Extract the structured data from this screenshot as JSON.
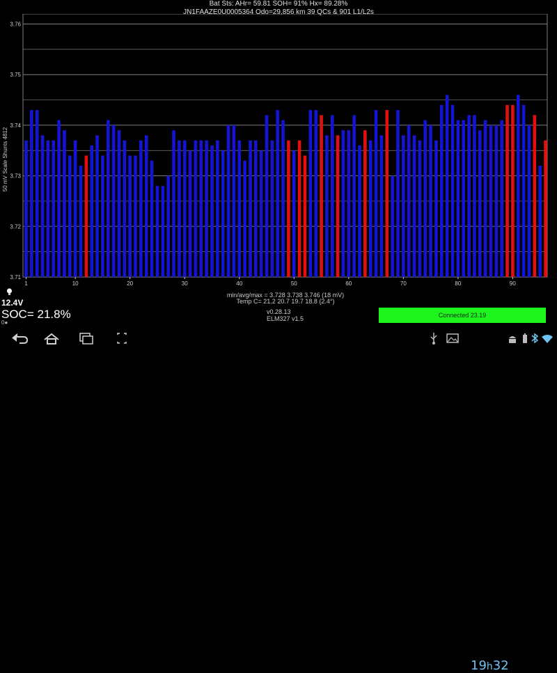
{
  "header": {
    "line1": "Bat Sts:  AHr= 59.81  SOH= 91%  Hx= 89.28%",
    "line2": "JN1FAAZE0U0005364 Odo=29,856 km  39 QCs  &  901 L1/L2s"
  },
  "chart_data": {
    "type": "bar",
    "title": "",
    "ylabel": "50 mV Scale   Shunts 4812",
    "xlabel": "",
    "ylim": [
      3.71,
      3.762
    ],
    "yticks": [
      3.71,
      3.72,
      3.73,
      3.74,
      3.75,
      3.76
    ],
    "ytick_labels": [
      "3.71",
      "3.72",
      "3.73",
      "3.74",
      "3.75",
      "3.76"
    ],
    "xticks": [
      1,
      10,
      20,
      30,
      40,
      50,
      60,
      70,
      80,
      90
    ],
    "xtick_labels": [
      "1",
      "10",
      "20",
      "30",
      "40",
      "50",
      "60",
      "70",
      "80",
      "90"
    ],
    "grid": true,
    "colors": {
      "normal": "#1414d4",
      "shunt": "#e01010",
      "grid": "#808080"
    },
    "x": [
      1,
      2,
      3,
      4,
      5,
      6,
      7,
      8,
      9,
      10,
      11,
      12,
      13,
      14,
      15,
      16,
      17,
      18,
      19,
      20,
      21,
      22,
      23,
      24,
      25,
      26,
      27,
      28,
      29,
      30,
      31,
      32,
      33,
      34,
      35,
      36,
      37,
      38,
      39,
      40,
      41,
      42,
      43,
      44,
      45,
      46,
      47,
      48,
      49,
      50,
      51,
      52,
      53,
      54,
      55,
      56,
      57,
      58,
      59,
      60,
      61,
      62,
      63,
      64,
      65,
      66,
      67,
      68,
      69,
      70,
      71,
      72,
      73,
      74,
      75,
      76,
      77,
      78,
      79,
      80,
      81,
      82,
      83,
      84,
      85,
      86,
      87,
      88,
      89,
      90,
      91,
      92,
      93,
      94,
      95,
      96
    ],
    "values": [
      3.737,
      3.743,
      3.743,
      3.738,
      3.737,
      3.737,
      3.741,
      3.739,
      3.734,
      3.737,
      3.732,
      3.734,
      3.736,
      3.738,
      3.734,
      3.741,
      3.74,
      3.739,
      3.737,
      3.734,
      3.734,
      3.737,
      3.738,
      3.733,
      3.728,
      3.728,
      3.73,
      3.739,
      3.737,
      3.737,
      3.735,
      3.737,
      3.737,
      3.737,
      3.736,
      3.737,
      3.735,
      3.74,
      3.74,
      3.737,
      3.733,
      3.737,
      3.737,
      3.735,
      3.742,
      3.737,
      3.743,
      3.741,
      3.737,
      3.735,
      3.737,
      3.734,
      3.743,
      3.743,
      3.742,
      3.738,
      3.742,
      3.738,
      3.739,
      3.739,
      3.742,
      3.736,
      3.739,
      3.737,
      3.743,
      3.738,
      3.743,
      3.73,
      3.743,
      3.738,
      3.74,
      3.738,
      3.737,
      3.741,
      3.74,
      3.737,
      3.744,
      3.746,
      3.744,
      3.741,
      3.741,
      3.742,
      3.742,
      3.739,
      3.741,
      3.74,
      3.74,
      3.741,
      3.744,
      3.744,
      3.746,
      3.744,
      3.74,
      3.742,
      3.732,
      3.737
    ],
    "shunts": [
      12,
      49,
      51,
      52,
      55,
      58,
      63,
      67,
      89,
      90,
      94,
      96
    ]
  },
  "stats": {
    "line1": "min/avg/max = 3.728 3.738 3.746  (18 mV)",
    "line2": "Temp C= 21.2  20.7  19.7  18.8  (2.4°)"
  },
  "status": {
    "voltage": "12.4V",
    "soc": "SOC= 21.8%",
    "soc_sub": "0●",
    "version": "v0.28.13",
    "adapter": "ELM327 v1.5",
    "connected": "Connected 23.19"
  },
  "navbar": {
    "clock_hour": "19",
    "clock_sep": "h",
    "clock_min": "32",
    "icons": [
      "back-icon",
      "home-icon",
      "recent-apps-icon",
      "screenshot-icon",
      "usb-icon",
      "picture-icon",
      "android-debug-icon",
      "battery-icon",
      "bluetooth-icon",
      "wifi-icon"
    ]
  }
}
